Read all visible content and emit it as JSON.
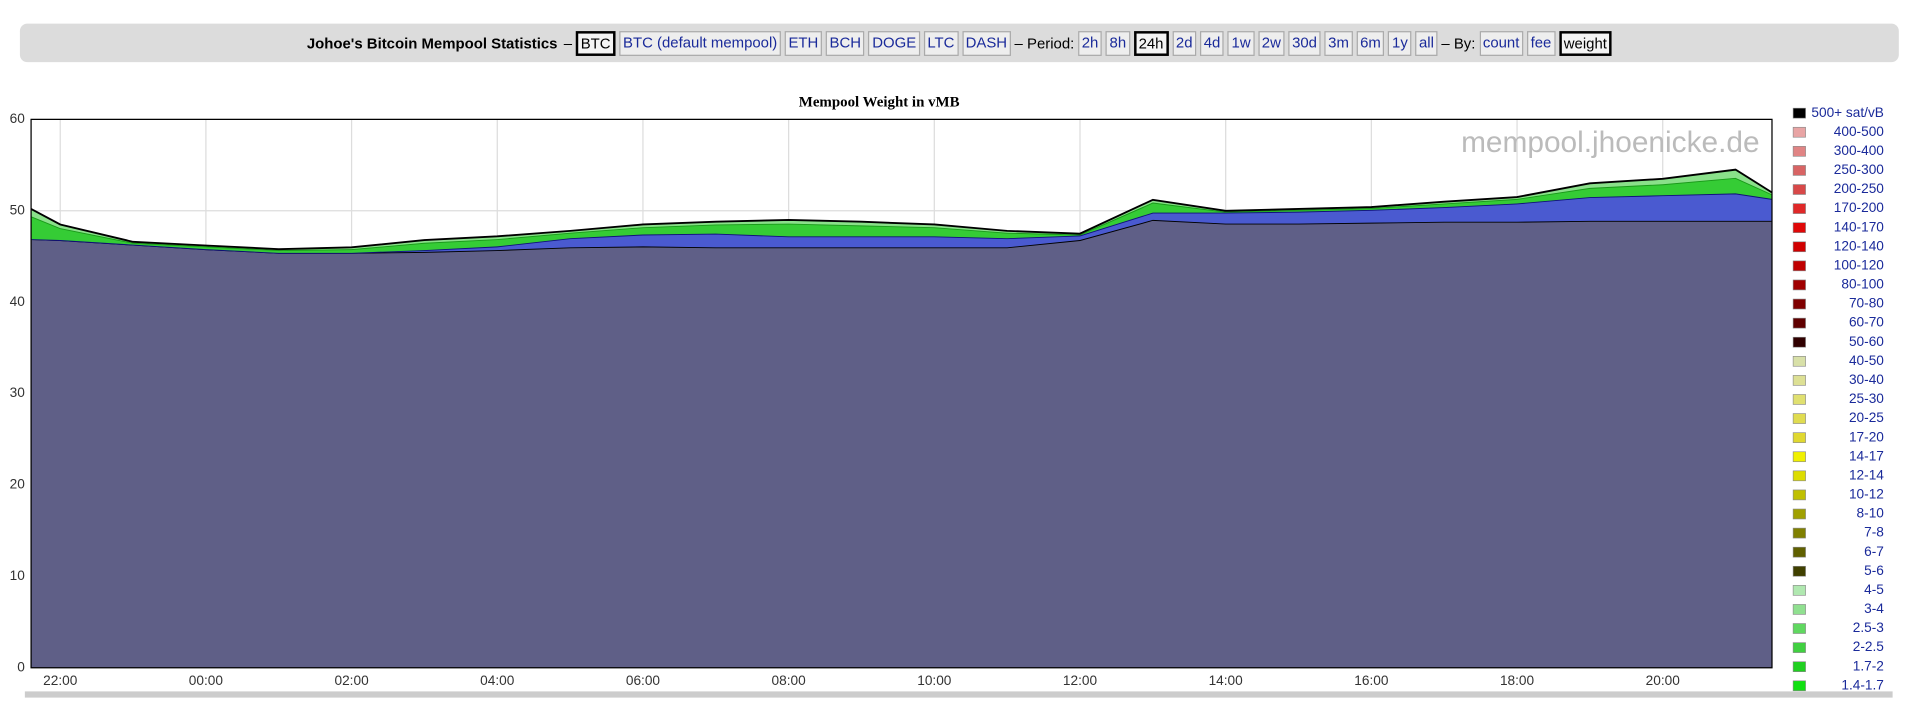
{
  "header": {
    "title": "Johoe's Bitcoin Mempool Statistics",
    "sep": "–",
    "coins": [
      {
        "label": "BTC",
        "selected": true
      },
      {
        "label": "BTC (default mempool)"
      },
      {
        "label": "ETH"
      },
      {
        "label": "BCH"
      },
      {
        "label": "DOGE"
      },
      {
        "label": "LTC"
      },
      {
        "label": "DASH"
      }
    ],
    "period_label": "– Period:",
    "periods": [
      {
        "label": "2h"
      },
      {
        "label": "8h"
      },
      {
        "label": "24h",
        "selected": true
      },
      {
        "label": "2d"
      },
      {
        "label": "4d"
      },
      {
        "label": "1w"
      },
      {
        "label": "2w"
      },
      {
        "label": "30d"
      },
      {
        "label": "3m"
      },
      {
        "label": "6m"
      },
      {
        "label": "1y"
      },
      {
        "label": "all"
      }
    ],
    "by_label": "– By:",
    "by": [
      {
        "label": "count"
      },
      {
        "label": "fee"
      },
      {
        "label": "weight",
        "selected": true
      }
    ]
  },
  "chart_data": {
    "type": "stacked_area",
    "title": "Mempool Weight in vMB",
    "watermark": "mempool.jhoenicke.de",
    "x": [
      21.6,
      22,
      23,
      24,
      25,
      26,
      27,
      28,
      29,
      30,
      31,
      32,
      33,
      34,
      35,
      36,
      37,
      38,
      39,
      40,
      41,
      42,
      43,
      44,
      45,
      45.5
    ],
    "xlim": [
      21.6,
      45.5
    ],
    "xticks": [
      {
        "value": 22,
        "label": "22:00"
      },
      {
        "value": 24,
        "label": "00:00"
      },
      {
        "value": 26,
        "label": "02:00"
      },
      {
        "value": 28,
        "label": "04:00"
      },
      {
        "value": 30,
        "label": "06:00"
      },
      {
        "value": 32,
        "label": "08:00"
      },
      {
        "value": 34,
        "label": "10:00"
      },
      {
        "value": 36,
        "label": "12:00"
      },
      {
        "value": 38,
        "label": "14:00"
      },
      {
        "value": 40,
        "label": "16:00"
      },
      {
        "value": 42,
        "label": "18:00"
      },
      {
        "value": 44,
        "label": "20:00"
      }
    ],
    "ylim": [
      0,
      60
    ],
    "yticks": [
      0,
      10,
      20,
      30,
      40,
      50,
      60
    ],
    "grid": true,
    "series": [
      {
        "color": "#5f5f87",
        "line_color": "#000000",
        "values": [
          46.9,
          46.8,
          46.3,
          45.8,
          45.4,
          45.4,
          45.5,
          45.7,
          46,
          46.1,
          46,
          46,
          46,
          46,
          46,
          46.8,
          49,
          48.6,
          48.6,
          48.7,
          48.8,
          48.8,
          48.9,
          48.9,
          48.9,
          48.9
        ]
      },
      {
        "color": "#4a5ad0",
        "line_color": "#10107a",
        "values": [
          0,
          0,
          0,
          0,
          0,
          0,
          0.2,
          0.4,
          1,
          1.3,
          1.5,
          1.2,
          1.2,
          1.2,
          1.0,
          0.5,
          0.8,
          1.2,
          1.3,
          1.4,
          1.6,
          2,
          2.6,
          2.8,
          3.0,
          2.4
        ]
      },
      {
        "color": "#35cc35",
        "line_color": "#1a9a1a",
        "values": [
          2.5,
          1.3,
          0.2,
          0.3,
          0.3,
          0.4,
          0.8,
          0.8,
          0.6,
          0.8,
          1.0,
          1.4,
          1.2,
          1.0,
          0.6,
          0.1,
          1.1,
          0.1,
          0.2,
          0.2,
          0.4,
          0.5,
          1.0,
          1.2,
          1.7,
          0.5
        ]
      },
      {
        "color": "#8ae08a",
        "line_color": "#000000",
        "values": [
          0.8,
          0.4,
          0.1,
          0.1,
          0.1,
          0.2,
          0.3,
          0.3,
          0.2,
          0.3,
          0.3,
          0.4,
          0.4,
          0.3,
          0.2,
          0.1,
          0.3,
          0.1,
          0.1,
          0.1,
          0.2,
          0.2,
          0.5,
          0.6,
          0.9,
          0.2
        ]
      }
    ],
    "legend": [
      {
        "label": "500+ sat/vB",
        "color": "#000000"
      },
      {
        "label": "400-500",
        "color": "#e8a4a4"
      },
      {
        "label": "300-400",
        "color": "#e08484"
      },
      {
        "label": "250-300",
        "color": "#d86464"
      },
      {
        "label": "200-250",
        "color": "#d84848"
      },
      {
        "label": "170-200",
        "color": "#e02828"
      },
      {
        "label": "140-170",
        "color": "#e00808"
      },
      {
        "label": "120-140",
        "color": "#d00000"
      },
      {
        "label": "100-120",
        "color": "#c00000"
      },
      {
        "label": "80-100",
        "color": "#a00000"
      },
      {
        "label": "70-80",
        "color": "#800000"
      },
      {
        "label": "60-70",
        "color": "#600000"
      },
      {
        "label": "50-60",
        "color": "#300000"
      },
      {
        "label": "40-50",
        "color": "#d8e0a8"
      },
      {
        "label": "30-40",
        "color": "#dde094"
      },
      {
        "label": "25-30",
        "color": "#e0e070"
      },
      {
        "label": "20-25",
        "color": "#e0dc50"
      },
      {
        "label": "17-20",
        "color": "#e0d830"
      },
      {
        "label": "14-17",
        "color": "#f0f000"
      },
      {
        "label": "12-14",
        "color": "#dddd00"
      },
      {
        "label": "10-12",
        "color": "#c0c000"
      },
      {
        "label": "8-10",
        "color": "#a0a000"
      },
      {
        "label": "7-8",
        "color": "#808000"
      },
      {
        "label": "6-7",
        "color": "#606000"
      },
      {
        "label": "5-6",
        "color": "#404000"
      },
      {
        "label": "4-5",
        "color": "#b0e8b0"
      },
      {
        "label": "3-4",
        "color": "#90e090"
      },
      {
        "label": "2.5-3",
        "color": "#60d860"
      },
      {
        "label": "2-2.5",
        "color": "#40d040"
      },
      {
        "label": "1.7-2",
        "color": "#20d020"
      },
      {
        "label": "1.4-1.7",
        "color": "#10e010"
      }
    ]
  }
}
